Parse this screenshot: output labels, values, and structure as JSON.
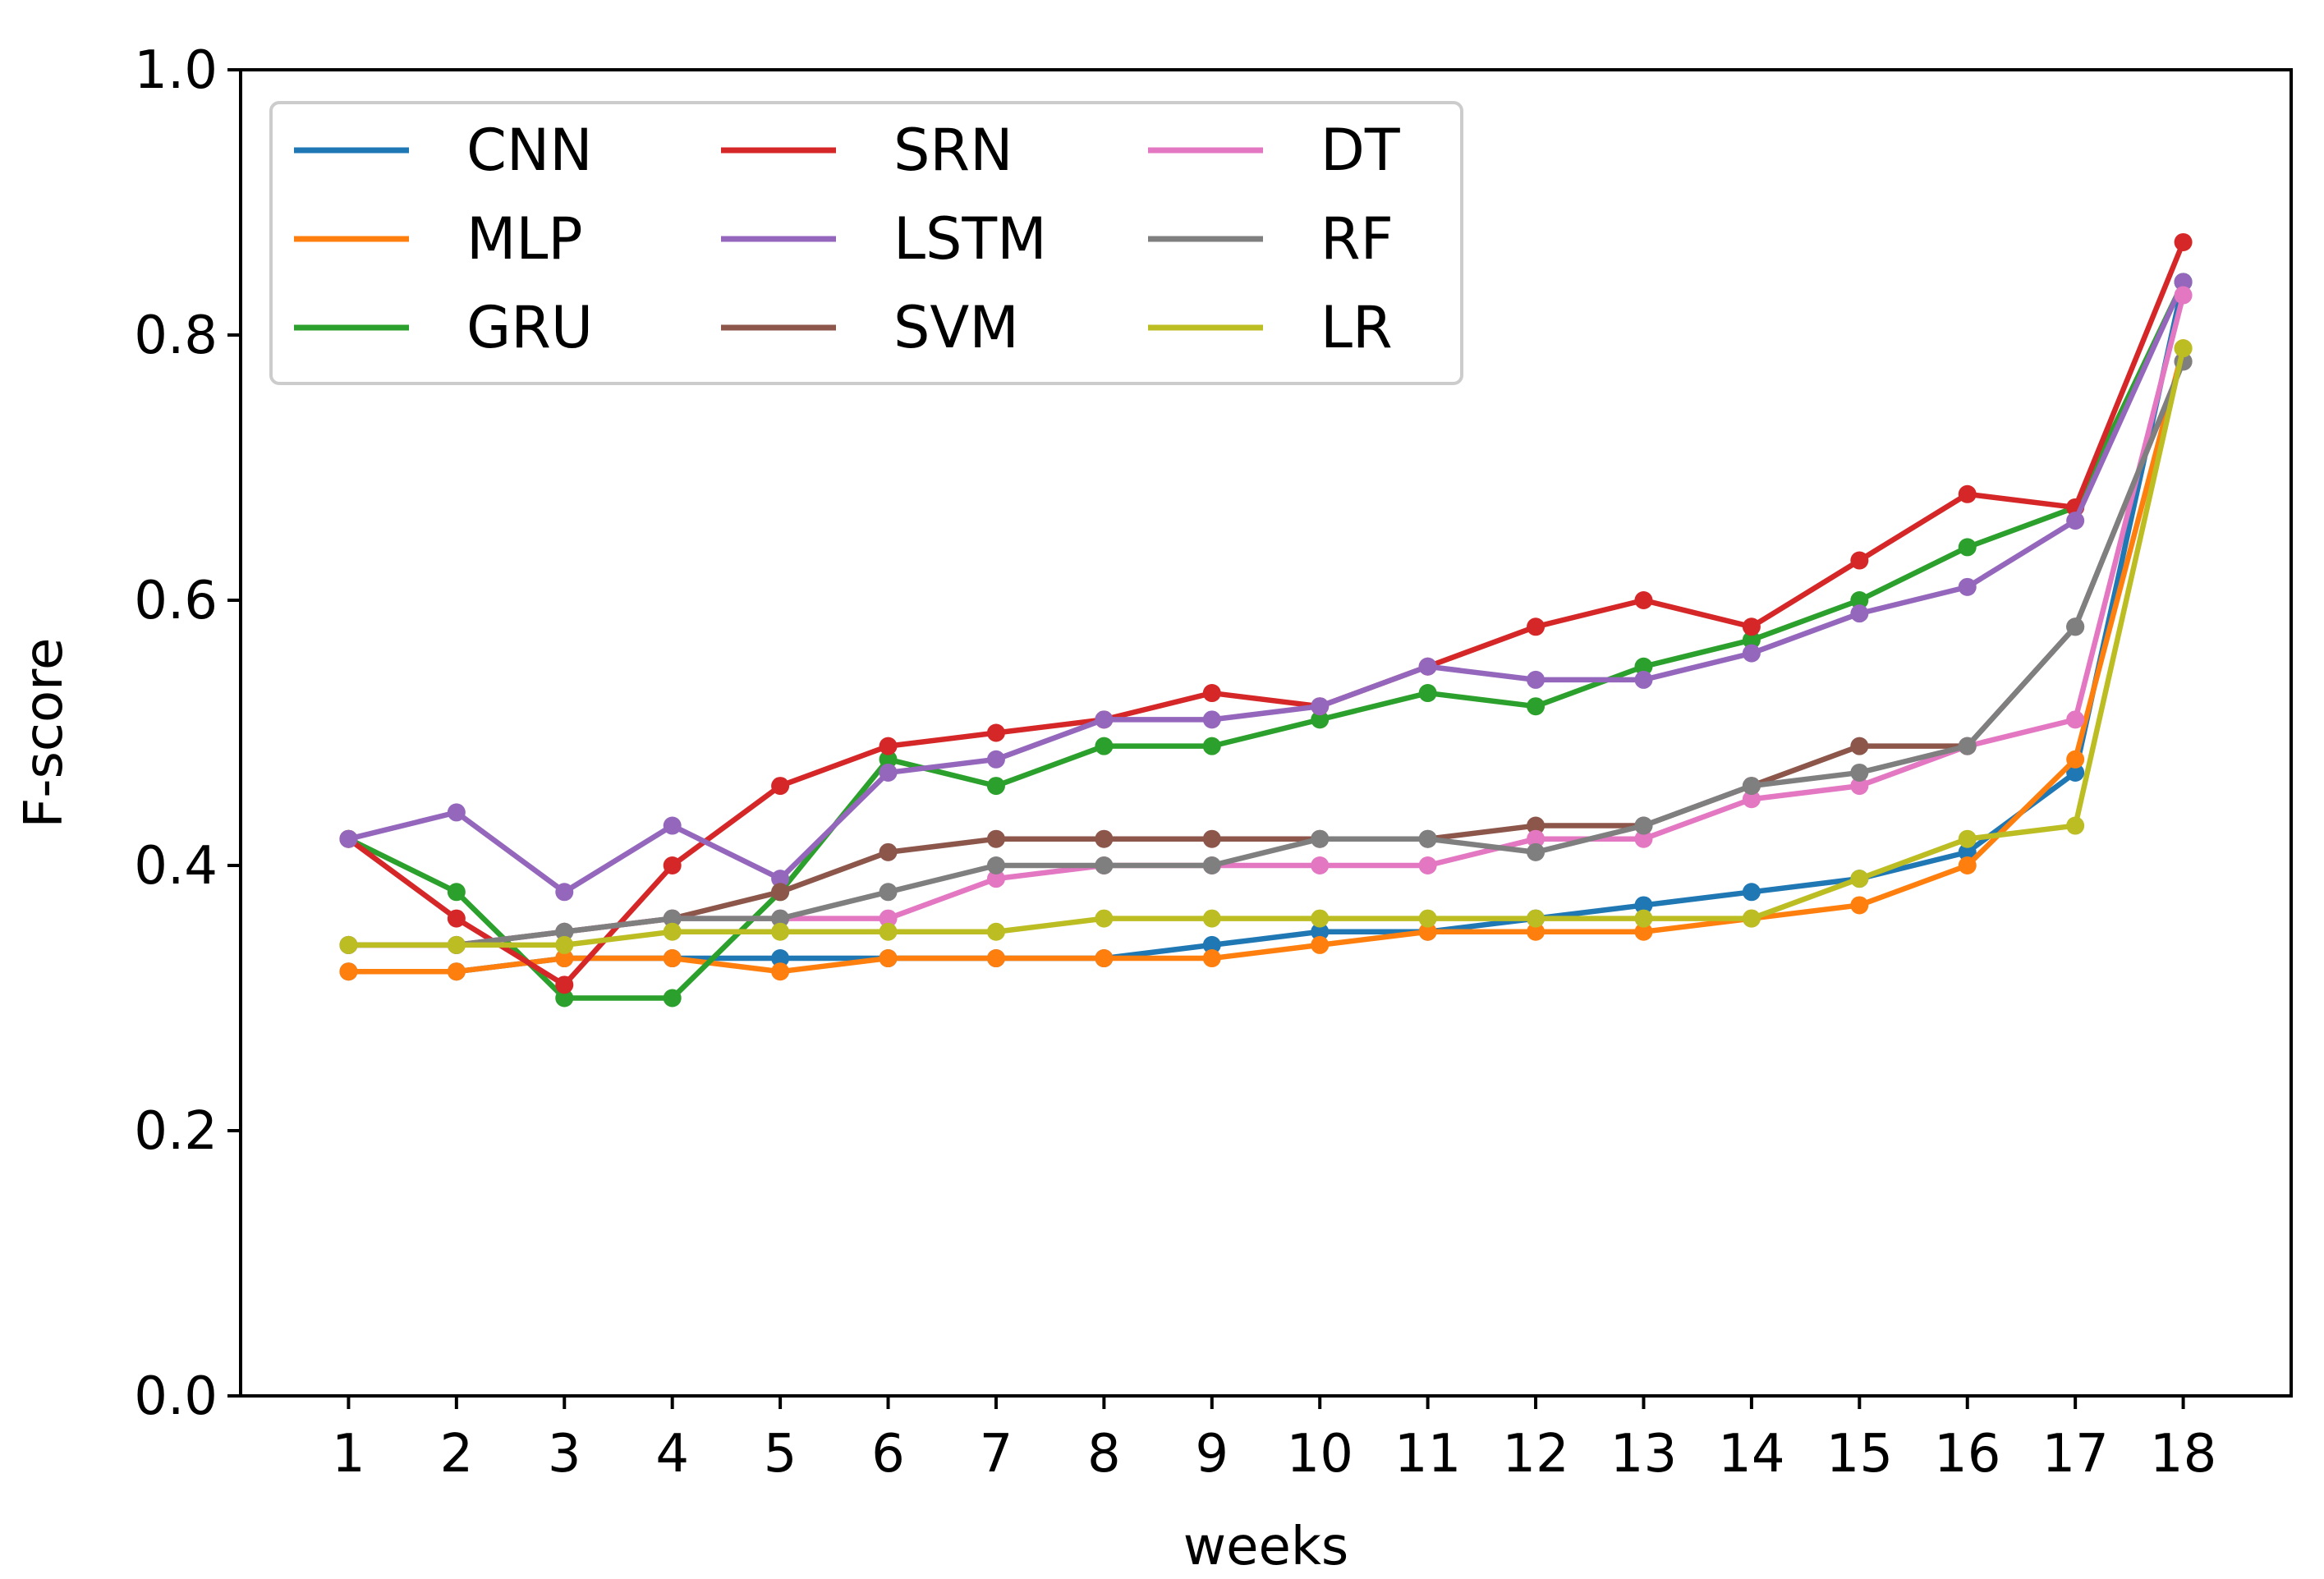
{
  "chart_data": {
    "type": "line",
    "title": "",
    "xlabel": "weeks",
    "ylabel": "F-score",
    "ylim": [
      0.0,
      1.0
    ],
    "x": [
      1,
      2,
      3,
      4,
      5,
      6,
      7,
      8,
      9,
      10,
      11,
      12,
      13,
      14,
      15,
      16,
      17,
      18
    ],
    "xticks": [
      "1",
      "2",
      "3",
      "4",
      "5",
      "6",
      "7",
      "8",
      "9",
      "10",
      "11",
      "12",
      "13",
      "14",
      "15",
      "16",
      "17",
      "18"
    ],
    "yticks": [
      "0.0",
      "0.2",
      "0.4",
      "0.6",
      "0.8",
      "1.0"
    ],
    "grid": false,
    "legend_position": "top-left",
    "legend_columns": 3,
    "series": [
      {
        "name": "CNN",
        "color": "#1f77b4",
        "values": [
          0.32,
          0.32,
          0.33,
          0.33,
          0.33,
          0.33,
          0.33,
          0.33,
          0.34,
          0.35,
          0.35,
          0.36,
          0.37,
          0.38,
          0.39,
          0.41,
          0.47,
          0.84
        ]
      },
      {
        "name": "MLP",
        "color": "#ff7f0e",
        "values": [
          0.32,
          0.32,
          0.33,
          0.33,
          0.32,
          0.33,
          0.33,
          0.33,
          0.33,
          0.34,
          0.35,
          0.35,
          0.35,
          0.36,
          0.37,
          0.4,
          0.48,
          0.79
        ]
      },
      {
        "name": "GRU",
        "color": "#2ca02c",
        "values": [
          0.42,
          0.38,
          0.3,
          0.3,
          0.38,
          0.48,
          0.46,
          0.49,
          0.49,
          0.51,
          0.53,
          0.52,
          0.55,
          0.57,
          0.6,
          0.64,
          0.67,
          0.84
        ]
      },
      {
        "name": "SRN",
        "color": "#d62728",
        "values": [
          0.42,
          0.36,
          0.31,
          0.4,
          0.46,
          0.49,
          0.5,
          0.51,
          0.53,
          0.52,
          0.55,
          0.58,
          0.6,
          0.58,
          0.63,
          0.68,
          0.67,
          0.87
        ]
      },
      {
        "name": "LSTM",
        "color": "#9467bd",
        "values": [
          0.42,
          0.44,
          0.38,
          0.43,
          0.39,
          0.47,
          0.48,
          0.51,
          0.51,
          0.52,
          0.55,
          0.54,
          0.54,
          0.56,
          0.59,
          0.61,
          0.66,
          0.84
        ]
      },
      {
        "name": "SVM",
        "color": "#8c564b",
        "values": [
          0.34,
          0.34,
          0.35,
          0.36,
          0.38,
          0.41,
          0.42,
          0.42,
          0.42,
          0.42,
          0.42,
          0.43,
          0.43,
          0.46,
          0.49,
          0.49,
          0.58,
          0.78
        ]
      },
      {
        "name": "DT",
        "color": "#e377c2",
        "values": [
          0.34,
          0.34,
          0.35,
          0.36,
          0.36,
          0.36,
          0.39,
          0.4,
          0.4,
          0.4,
          0.4,
          0.42,
          0.42,
          0.45,
          0.46,
          0.49,
          0.51,
          0.83
        ]
      },
      {
        "name": "RF",
        "color": "#7f7f7f",
        "values": [
          0.34,
          0.34,
          0.35,
          0.36,
          0.36,
          0.38,
          0.4,
          0.4,
          0.4,
          0.42,
          0.42,
          0.41,
          0.43,
          0.46,
          0.47,
          0.49,
          0.58,
          0.78
        ]
      },
      {
        "name": "LR",
        "color": "#bcbd22",
        "values": [
          0.34,
          0.34,
          0.34,
          0.35,
          0.35,
          0.35,
          0.35,
          0.36,
          0.36,
          0.36,
          0.36,
          0.36,
          0.36,
          0.36,
          0.39,
          0.42,
          0.43,
          0.79
        ]
      }
    ]
  }
}
